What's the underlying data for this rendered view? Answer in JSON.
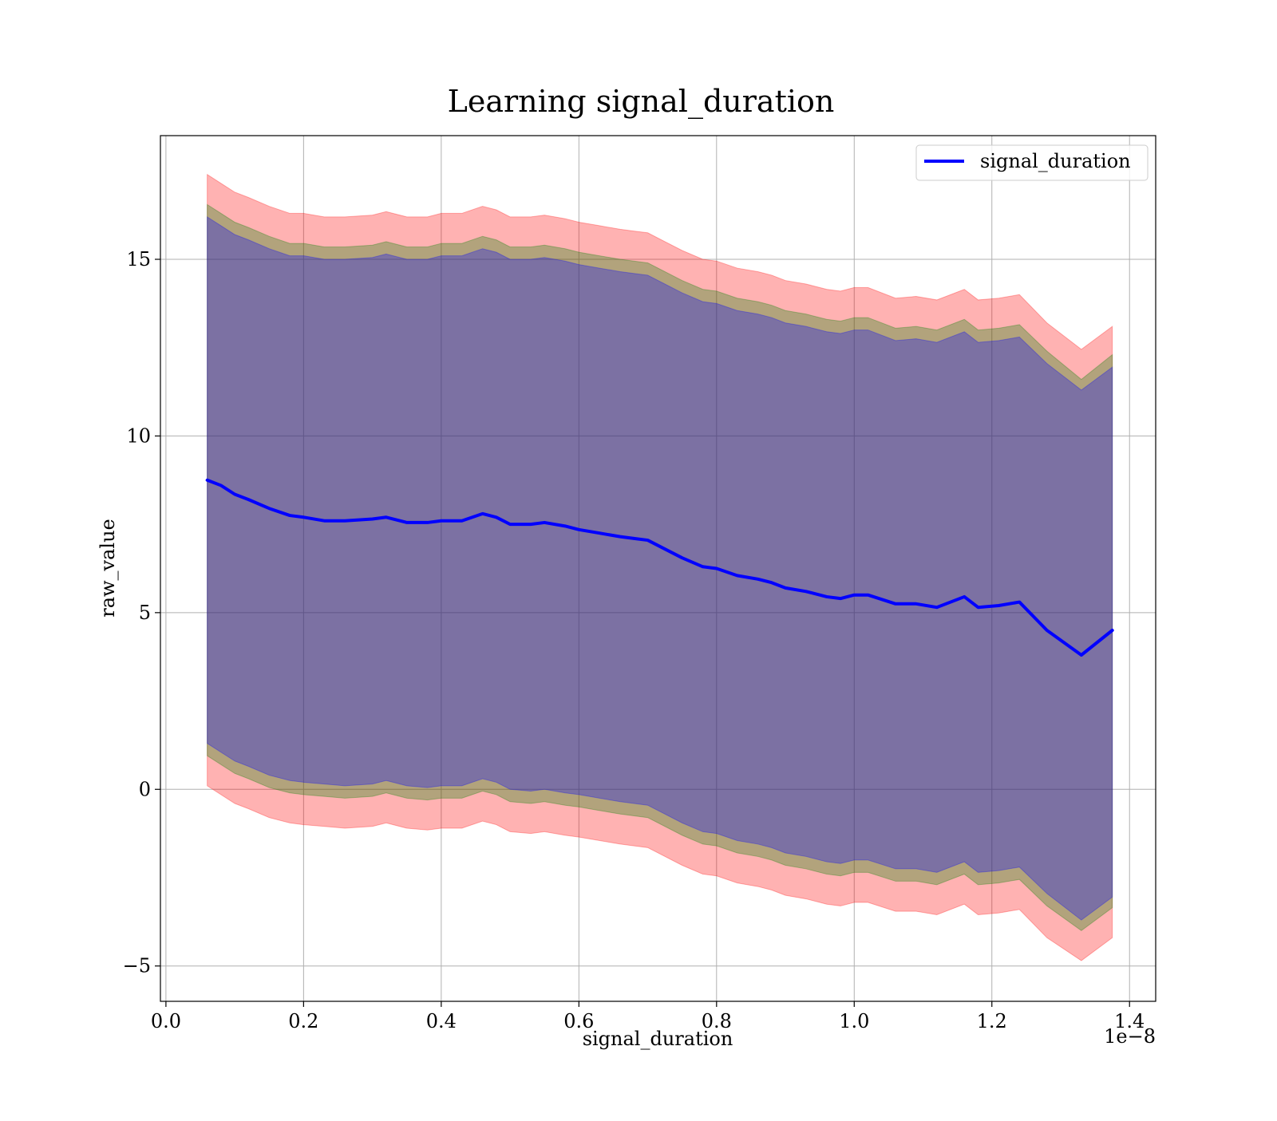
{
  "chart_data": {
    "type": "area",
    "title": "Learning signal_duration",
    "xlabel": "signal_duration",
    "ylabel": "raw_value",
    "x_offset_label": "1e−8",
    "xlim": [
      -0.008,
      1.438
    ],
    "ylim": [
      -6.0,
      18.5
    ],
    "x_ticks": [
      0.0,
      0.2,
      0.4,
      0.6,
      0.8,
      1.0,
      1.2,
      1.4
    ],
    "x_tick_labels": [
      "0.0",
      "0.2",
      "0.4",
      "0.6",
      "0.8",
      "1.0",
      "1.2",
      "1.4"
    ],
    "y_ticks": [
      -5,
      0,
      5,
      10,
      15
    ],
    "y_tick_labels": [
      "−5",
      "0",
      "5",
      "10",
      "15"
    ],
    "grid": true,
    "legend_position": "upper right",
    "x": [
      0.06,
      0.08,
      0.1,
      0.12,
      0.15,
      0.18,
      0.2,
      0.23,
      0.26,
      0.3,
      0.32,
      0.35,
      0.38,
      0.4,
      0.43,
      0.46,
      0.48,
      0.5,
      0.53,
      0.55,
      0.58,
      0.6,
      0.63,
      0.66,
      0.68,
      0.7,
      0.72,
      0.75,
      0.78,
      0.8,
      0.83,
      0.86,
      0.88,
      0.9,
      0.93,
      0.96,
      0.98,
      1.0,
      1.02,
      1.06,
      1.09,
      1.12,
      1.16,
      1.18,
      1.21,
      1.24,
      1.28,
      1.33,
      1.375
    ],
    "series": [
      {
        "name": "signal_duration",
        "color": "#0000ff",
        "values": [
          8.75,
          8.6,
          8.35,
          8.2,
          7.95,
          7.75,
          7.7,
          7.6,
          7.6,
          7.65,
          7.7,
          7.55,
          7.55,
          7.6,
          7.6,
          7.8,
          7.7,
          7.5,
          7.5,
          7.55,
          7.45,
          7.35,
          7.25,
          7.15,
          7.1,
          7.05,
          6.85,
          6.55,
          6.3,
          6.25,
          6.05,
          5.95,
          5.85,
          5.7,
          5.6,
          5.45,
          5.4,
          5.5,
          5.5,
          5.25,
          5.25,
          5.15,
          5.45,
          5.15,
          5.2,
          5.3,
          4.5,
          3.8,
          4.5
        ]
      }
    ],
    "bands": [
      {
        "color": "#ff0000",
        "opacity": 0.3,
        "lower": [
          0.1,
          -0.15,
          -0.4,
          -0.55,
          -0.8,
          -0.95,
          -1.0,
          -1.05,
          -1.1,
          -1.05,
          -0.95,
          -1.1,
          -1.15,
          -1.1,
          -1.1,
          -0.9,
          -1.0,
          -1.2,
          -1.25,
          -1.2,
          -1.3,
          -1.35,
          -1.45,
          -1.55,
          -1.6,
          -1.65,
          -1.85,
          -2.15,
          -2.4,
          -2.45,
          -2.65,
          -2.75,
          -2.85,
          -3.0,
          -3.1,
          -3.25,
          -3.3,
          -3.2,
          -3.2,
          -3.45,
          -3.45,
          -3.55,
          -3.25,
          -3.55,
          -3.5,
          -3.4,
          -4.2,
          -4.85,
          -4.2
        ],
        "upper": [
          17.4,
          17.15,
          16.9,
          16.75,
          16.5,
          16.3,
          16.3,
          16.2,
          16.2,
          16.25,
          16.35,
          16.2,
          16.2,
          16.3,
          16.3,
          16.5,
          16.4,
          16.2,
          16.2,
          16.25,
          16.15,
          16.05,
          15.95,
          15.85,
          15.8,
          15.75,
          15.55,
          15.25,
          15.0,
          14.95,
          14.75,
          14.65,
          14.55,
          14.4,
          14.3,
          14.15,
          14.1,
          14.2,
          14.2,
          13.9,
          13.95,
          13.85,
          14.15,
          13.85,
          13.9,
          14.0,
          13.2,
          12.45,
          13.1
        ]
      },
      {
        "color": "#008000",
        "opacity": 0.3,
        "lower": [
          0.95,
          0.7,
          0.45,
          0.3,
          0.05,
          -0.1,
          -0.15,
          -0.2,
          -0.25,
          -0.2,
          -0.1,
          -0.25,
          -0.3,
          -0.25,
          -0.25,
          -0.05,
          -0.15,
          -0.35,
          -0.4,
          -0.35,
          -0.45,
          -0.5,
          -0.6,
          -0.7,
          -0.75,
          -0.8,
          -1.0,
          -1.3,
          -1.55,
          -1.6,
          -1.8,
          -1.9,
          -2.0,
          -2.15,
          -2.25,
          -2.4,
          -2.45,
          -2.35,
          -2.35,
          -2.6,
          -2.6,
          -2.7,
          -2.4,
          -2.7,
          -2.65,
          -2.55,
          -3.3,
          -4.0,
          -3.35
        ],
        "upper": [
          16.55,
          16.3,
          16.05,
          15.9,
          15.65,
          15.45,
          15.45,
          15.35,
          15.35,
          15.4,
          15.5,
          15.35,
          15.35,
          15.45,
          15.45,
          15.65,
          15.55,
          15.35,
          15.35,
          15.4,
          15.3,
          15.2,
          15.1,
          15.0,
          14.95,
          14.9,
          14.7,
          14.4,
          14.15,
          14.1,
          13.9,
          13.8,
          13.7,
          13.55,
          13.45,
          13.3,
          13.25,
          13.35,
          13.35,
          13.05,
          13.1,
          13.0,
          13.3,
          13.0,
          13.05,
          13.15,
          12.4,
          11.6,
          12.3
        ]
      },
      {
        "color": "#0000ff",
        "opacity": 0.3,
        "lower": [
          1.3,
          1.05,
          0.8,
          0.65,
          0.4,
          0.25,
          0.2,
          0.15,
          0.1,
          0.15,
          0.25,
          0.1,
          0.05,
          0.1,
          0.1,
          0.3,
          0.2,
          0.0,
          -0.05,
          0.0,
          -0.1,
          -0.15,
          -0.25,
          -0.35,
          -0.4,
          -0.45,
          -0.65,
          -0.95,
          -1.2,
          -1.25,
          -1.45,
          -1.55,
          -1.65,
          -1.8,
          -1.9,
          -2.05,
          -2.1,
          -2.0,
          -2.0,
          -2.25,
          -2.25,
          -2.35,
          -2.05,
          -2.35,
          -2.3,
          -2.2,
          -2.95,
          -3.7,
          -3.05
        ],
        "upper": [
          16.2,
          15.95,
          15.7,
          15.55,
          15.3,
          15.1,
          15.1,
          15.0,
          15.0,
          15.05,
          15.15,
          15.0,
          15.0,
          15.1,
          15.1,
          15.3,
          15.2,
          15.0,
          15.0,
          15.05,
          14.95,
          14.85,
          14.75,
          14.65,
          14.6,
          14.55,
          14.35,
          14.05,
          13.8,
          13.75,
          13.55,
          13.45,
          13.35,
          13.2,
          13.1,
          12.95,
          12.9,
          13.0,
          13.0,
          12.7,
          12.75,
          12.65,
          12.95,
          12.65,
          12.7,
          12.8,
          12.05,
          11.3,
          11.95
        ]
      }
    ]
  }
}
